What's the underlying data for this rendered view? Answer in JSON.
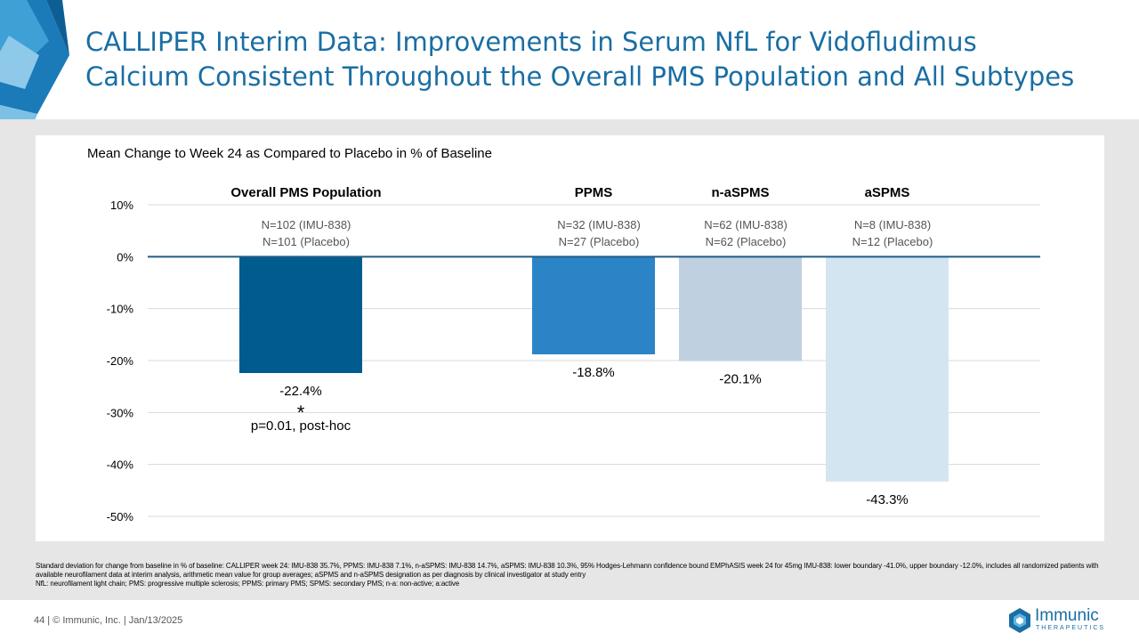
{
  "slide": {
    "title_line1": "CALLIPER Interim Data: Improvements in Serum NfL for Vidofludimus",
    "title_line2": "Calcium Consistent Throughout the Overall PMS Population and All Subtypes",
    "footnote_line1": "Standard deviation for change from baseline in % of baseline: CALLIPER week 24: IMU-838 35.7%, PPMS: IMU-838 7.1%, n-aSPMS: IMU-838 14.7%, aSPMS: IMU-838 10.3%, 95% Hodges-Lehmann confidence bound EMPhASIS week 24 for 45mg IMU-838: lower boundary -41.0%, upper boundary -12.0%, includes all randomized patients with available neurofilament data at interim analysis, arithmetic mean value for group averages; aSPMS and n-aSPMS designation as per diagnosis by clinical investigator at study entry",
    "footnote_line2": "NfL: neurofilament light chain; PMS: progressive multiple sclerosis; PPMS: primary PMS; SPMS: secondary PMS; n-a: non-active; a:active",
    "footer": "44  |  © Immunic, Inc.  | Jan/13/2025",
    "logo_name": "Immunic",
    "logo_sub": "THERAPEUTICS",
    "brand_color": "#1a6ea3"
  },
  "chart_data": {
    "type": "bar",
    "subtitle": "Mean Change to Week 24 as Compared to Placebo in % of Baseline",
    "categories": [
      "Overall PMS Population",
      "PPMS",
      "n-aSPMS",
      "aSPMS"
    ],
    "values": [
      -22.4,
      -18.8,
      -20.1,
      -43.3
    ],
    "value_labels": [
      "-22.4%",
      "-18.8%",
      "-20.1%",
      "-43.3%"
    ],
    "n_imu": [
      "N=102 (IMU-838)",
      "N=32 (IMU-838)",
      "N=62 (IMU-838)",
      "N=8 (IMU-838)"
    ],
    "n_placebo": [
      "N=101 (Placebo)",
      "N=27 (Placebo)",
      "N=62 (Placebo)",
      "N=12 (Placebo)"
    ],
    "colors": [
      "#005b8f",
      "#2a84c6",
      "#bfd0e0",
      "#d4e5f2"
    ],
    "significance_marker": "*",
    "significance_text": "p=0.01, post-hoc",
    "ylim": [
      -50,
      10
    ],
    "yticks": [
      10,
      0,
      -10,
      -20,
      -30,
      -40,
      -50
    ],
    "ytick_labels": [
      "10%",
      "0%",
      "-10%",
      "-20%",
      "-30%",
      "-40%",
      "-50%"
    ],
    "grid": true
  }
}
